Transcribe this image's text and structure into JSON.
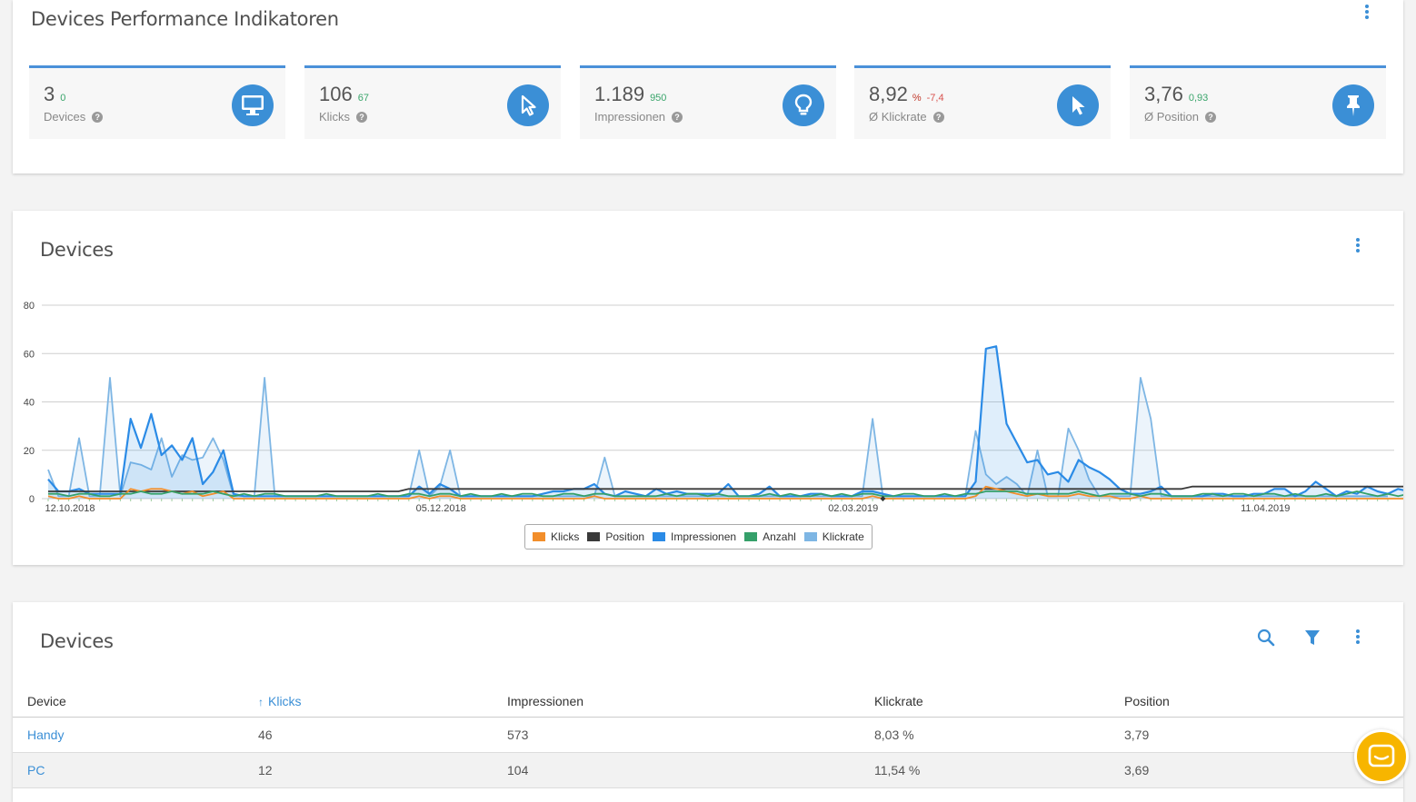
{
  "kpi_section": {
    "title": "Devices Performance Indikatoren",
    "cards": [
      {
        "value": "3",
        "delta": "0",
        "delta_color": "#3aa56b",
        "label": "Devices",
        "icon": "monitor-icon"
      },
      {
        "value": "106",
        "delta": "67",
        "delta_color": "#3aa56b",
        "label": "Klicks",
        "icon": "cursor-icon"
      },
      {
        "value": "1.189",
        "delta": "950",
        "delta_color": "#3aa56b",
        "label": "Impressionen",
        "icon": "lightbulb-icon"
      },
      {
        "value": "8,92",
        "unit": "%",
        "delta": "-7,4",
        "delta_color": "#d9534f",
        "label": "Ø Klickrate",
        "icon": "pointer-icon"
      },
      {
        "value": "3,76",
        "delta": "0,93",
        "delta_color": "#3aa56b",
        "label": "Ø Position",
        "icon": "pin-icon"
      }
    ]
  },
  "chart_section": {
    "title": "Devices",
    "legend": [
      {
        "name": "Klicks",
        "color": "#f28e2b"
      },
      {
        "name": "Position",
        "color": "#3a3a3a"
      },
      {
        "name": "Impressionen",
        "color": "#2b8be6"
      },
      {
        "name": "Anzahl",
        "color": "#35a06a"
      },
      {
        "name": "Klickrate",
        "color": "#7eb6e4"
      }
    ]
  },
  "chart_data": {
    "type": "line",
    "ylim": [
      0,
      80
    ],
    "yticks": [
      "0",
      "20",
      "40",
      "60",
      "80"
    ],
    "xtick_labels": [
      "12.10.2018",
      "05.12.2018",
      "02.03.2019",
      "11.04.2019"
    ],
    "grid": true,
    "legend_position": "bottom",
    "series": [
      {
        "name": "Klickrate",
        "color": "#7eb6e4",
        "area": true,
        "values": [
          12,
          1,
          1,
          25,
          1,
          1,
          50,
          1,
          15,
          14,
          12,
          25,
          9,
          18,
          16,
          17,
          25,
          16,
          1,
          1,
          1,
          50,
          1,
          1,
          1,
          1,
          1,
          1,
          1,
          1,
          1,
          1,
          1,
          1,
          1,
          1,
          20,
          1,
          5,
          20,
          1,
          1,
          1,
          1,
          1,
          1,
          1,
          1,
          1,
          1,
          1,
          1,
          1,
          1,
          17,
          1,
          1,
          1,
          1,
          1,
          1,
          1,
          1,
          1,
          1,
          1,
          1,
          1,
          1,
          1,
          1,
          1,
          1,
          1,
          1,
          1,
          1,
          1,
          1,
          1,
          33,
          1,
          1,
          1,
          1,
          1,
          1,
          1,
          1,
          1,
          28,
          10,
          6,
          9,
          6,
          1,
          20,
          1,
          1,
          29,
          20,
          8,
          1,
          1,
          1,
          1,
          50,
          33,
          1,
          1,
          1,
          1,
          1,
          1,
          1,
          1,
          1,
          1,
          1,
          1,
          1,
          1,
          1,
          1,
          1,
          1,
          1,
          1,
          1,
          1,
          1
        ]
      },
      {
        "name": "Impressionen",
        "color": "#2b8be6",
        "area": true,
        "values": [
          8,
          3,
          3,
          4,
          2,
          2,
          2,
          2,
          33,
          21,
          35,
          18,
          22,
          16,
          25,
          6,
          11,
          20,
          2,
          1,
          1,
          1,
          1,
          1,
          1,
          1,
          1,
          1,
          1,
          1,
          1,
          1,
          1,
          1,
          1,
          1,
          5,
          2,
          6,
          4,
          1,
          1,
          1,
          1,
          1,
          1,
          1,
          1,
          2,
          3,
          3,
          4,
          4,
          6,
          2,
          1,
          3,
          2,
          1,
          4,
          2,
          3,
          2,
          2,
          2,
          2,
          6,
          1,
          1,
          2,
          5,
          1,
          1,
          1,
          2,
          2,
          1,
          1,
          1,
          3,
          3,
          2,
          1,
          1,
          1,
          1,
          1,
          1,
          1,
          1,
          7,
          62,
          63,
          31,
          23,
          15,
          16,
          10,
          11,
          7,
          16,
          13,
          11,
          8,
          4,
          2,
          2,
          3,
          5,
          1,
          1,
          1,
          1,
          2,
          2,
          1,
          1,
          2,
          2,
          4,
          4,
          1,
          3,
          7,
          4,
          1,
          3,
          2,
          5,
          3,
          2,
          4,
          3,
          2,
          1
        ]
      },
      {
        "name": "Position",
        "color": "#3a3a3a",
        "area": false,
        "values": [
          3,
          3,
          3,
          3,
          3,
          3,
          3,
          3,
          3,
          3,
          3,
          3,
          3,
          3,
          3,
          3,
          3,
          3,
          3,
          3,
          3,
          3,
          3,
          3,
          3,
          3,
          3,
          3,
          3,
          3,
          3,
          3,
          3,
          3,
          3,
          4,
          4,
          4,
          4,
          4,
          4,
          4,
          4,
          4,
          4,
          4,
          4,
          4,
          4,
          4,
          4,
          4,
          4,
          4,
          4,
          4,
          4,
          4,
          4,
          4,
          4,
          4,
          4,
          4,
          4,
          4,
          4,
          4,
          4,
          4,
          4,
          4,
          4,
          4,
          4,
          4,
          4,
          4,
          4,
          4,
          4,
          4,
          4,
          4,
          4,
          4,
          4,
          4,
          4,
          4,
          4,
          4,
          4,
          4,
          4,
          4,
          4,
          4,
          4,
          4,
          4,
          4,
          4,
          4,
          4,
          4,
          4,
          4,
          4,
          4,
          4,
          5,
          5,
          5,
          5,
          5,
          5,
          5,
          5,
          5,
          5,
          5,
          5,
          5,
          5,
          5,
          5,
          5,
          5,
          5,
          5,
          5,
          5,
          5,
          5
        ]
      },
      {
        "name": "Klicks",
        "color": "#f28e2b",
        "area": false,
        "values": [
          1,
          0,
          0,
          1,
          0,
          0,
          0,
          0,
          4,
          3,
          4,
          4,
          3,
          2,
          3,
          1,
          2,
          3,
          0,
          0,
          0,
          0,
          0,
          0,
          0,
          0,
          0,
          0,
          0,
          0,
          0,
          0,
          0,
          0,
          0,
          0,
          1,
          0,
          1,
          1,
          0,
          0,
          0,
          0,
          0,
          0,
          0,
          0,
          0,
          0,
          0,
          0,
          0,
          1,
          0,
          0,
          0,
          0,
          0,
          0,
          0,
          0,
          0,
          0,
          0,
          0,
          0,
          0,
          0,
          0,
          0,
          0,
          0,
          0,
          0,
          0,
          0,
          0,
          0,
          0,
          1,
          0,
          0,
          0,
          0,
          0,
          0,
          0,
          0,
          0,
          1,
          5,
          4,
          3,
          2,
          1,
          2,
          1,
          1,
          1,
          2,
          1,
          1,
          1,
          0,
          0,
          1,
          0,
          0,
          0,
          0,
          0,
          0,
          0,
          0,
          0,
          0,
          0,
          0,
          0,
          0,
          0,
          0,
          0,
          0,
          0,
          0,
          0,
          0,
          0,
          0,
          0,
          0,
          0,
          0
        ]
      },
      {
        "name": "Anzahl",
        "color": "#35a06a",
        "area": false,
        "values": [
          2,
          2,
          1,
          2,
          2,
          1,
          1,
          2,
          2,
          3,
          2,
          2,
          3,
          2,
          2,
          2,
          3,
          2,
          1,
          2,
          1,
          2,
          2,
          1,
          1,
          1,
          1,
          2,
          1,
          1,
          1,
          1,
          2,
          1,
          1,
          2,
          2,
          1,
          2,
          2,
          1,
          2,
          1,
          1,
          2,
          1,
          2,
          2,
          1,
          1,
          2,
          2,
          1,
          2,
          2,
          1,
          1,
          1,
          1,
          1,
          2,
          1,
          2,
          2,
          1,
          2,
          1,
          1,
          1,
          1,
          2,
          1,
          2,
          1,
          1,
          2,
          1,
          2,
          1,
          2,
          2,
          1,
          1,
          2,
          2,
          1,
          1,
          2,
          1,
          2,
          2,
          3,
          3,
          3,
          3,
          2,
          2,
          2,
          2,
          2,
          3,
          2,
          1,
          2,
          2,
          2,
          1,
          2,
          2,
          1,
          1,
          1,
          2,
          2,
          1,
          2,
          2,
          1,
          2,
          2,
          1,
          2,
          1,
          1,
          2,
          1,
          2,
          3,
          2,
          1,
          2,
          1,
          2,
          1,
          2
        ]
      }
    ]
  },
  "table_section": {
    "title": "Devices",
    "columns": [
      "Device",
      "Klicks",
      "Impressionen",
      "Klickrate",
      "Position"
    ],
    "sort_indicator": "↑",
    "rows": [
      {
        "device": "Handy",
        "klicks": "46",
        "impressionen": "573",
        "klickrate": "8,03 %",
        "position": "3,79"
      },
      {
        "device": "PC",
        "klicks": "12",
        "impressionen": "104",
        "klickrate": "11,54 %",
        "position": "3,69"
      }
    ]
  }
}
